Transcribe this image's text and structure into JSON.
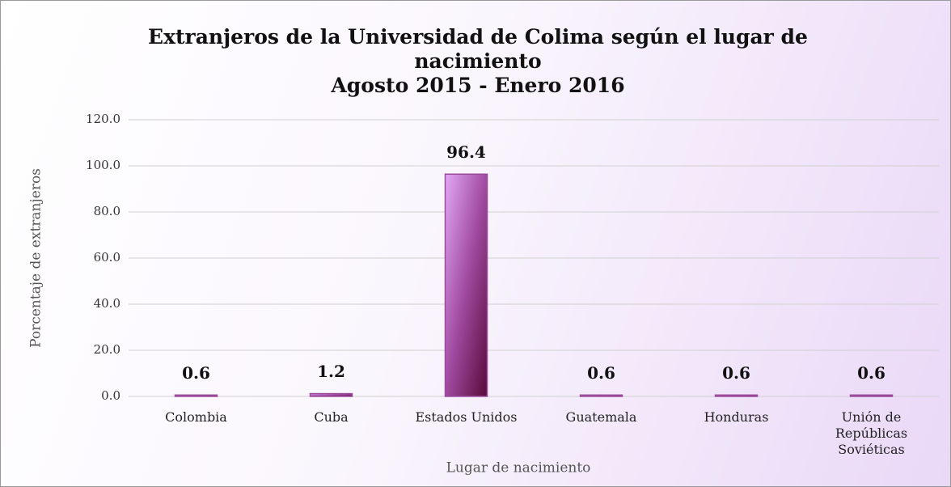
{
  "chart_data": {
    "type": "bar",
    "title": "Extranjeros de la Universidad de Colima según el lugar de nacimiento",
    "subtitle": "Agosto 2015 - Enero 2016",
    "x_label": "Lugar de nacimiento",
    "y_label": "Porcentaje de extranjeros",
    "categories": [
      "Colombia",
      "Cuba",
      "Estados Unidos",
      "Guatemala",
      "Honduras",
      "Unión de Repúblicas Soviéticas"
    ],
    "values": [
      0.6,
      1.2,
      96.4,
      0.6,
      0.6,
      0.6
    ],
    "color": "#9b4a9b",
    "ylim": [
      0,
      120
    ],
    "yticks": [
      {
        "value": 0,
        "label": "0.0"
      },
      {
        "value": 20,
        "label": "20.0"
      },
      {
        "value": 40,
        "label": "40.0"
      },
      {
        "value": 60,
        "label": "60.0"
      },
      {
        "value": 80,
        "label": "80.0"
      },
      {
        "value": 100,
        "label": "100.0"
      },
      {
        "value": 120,
        "label": "120.0"
      }
    ],
    "grid": true
  }
}
